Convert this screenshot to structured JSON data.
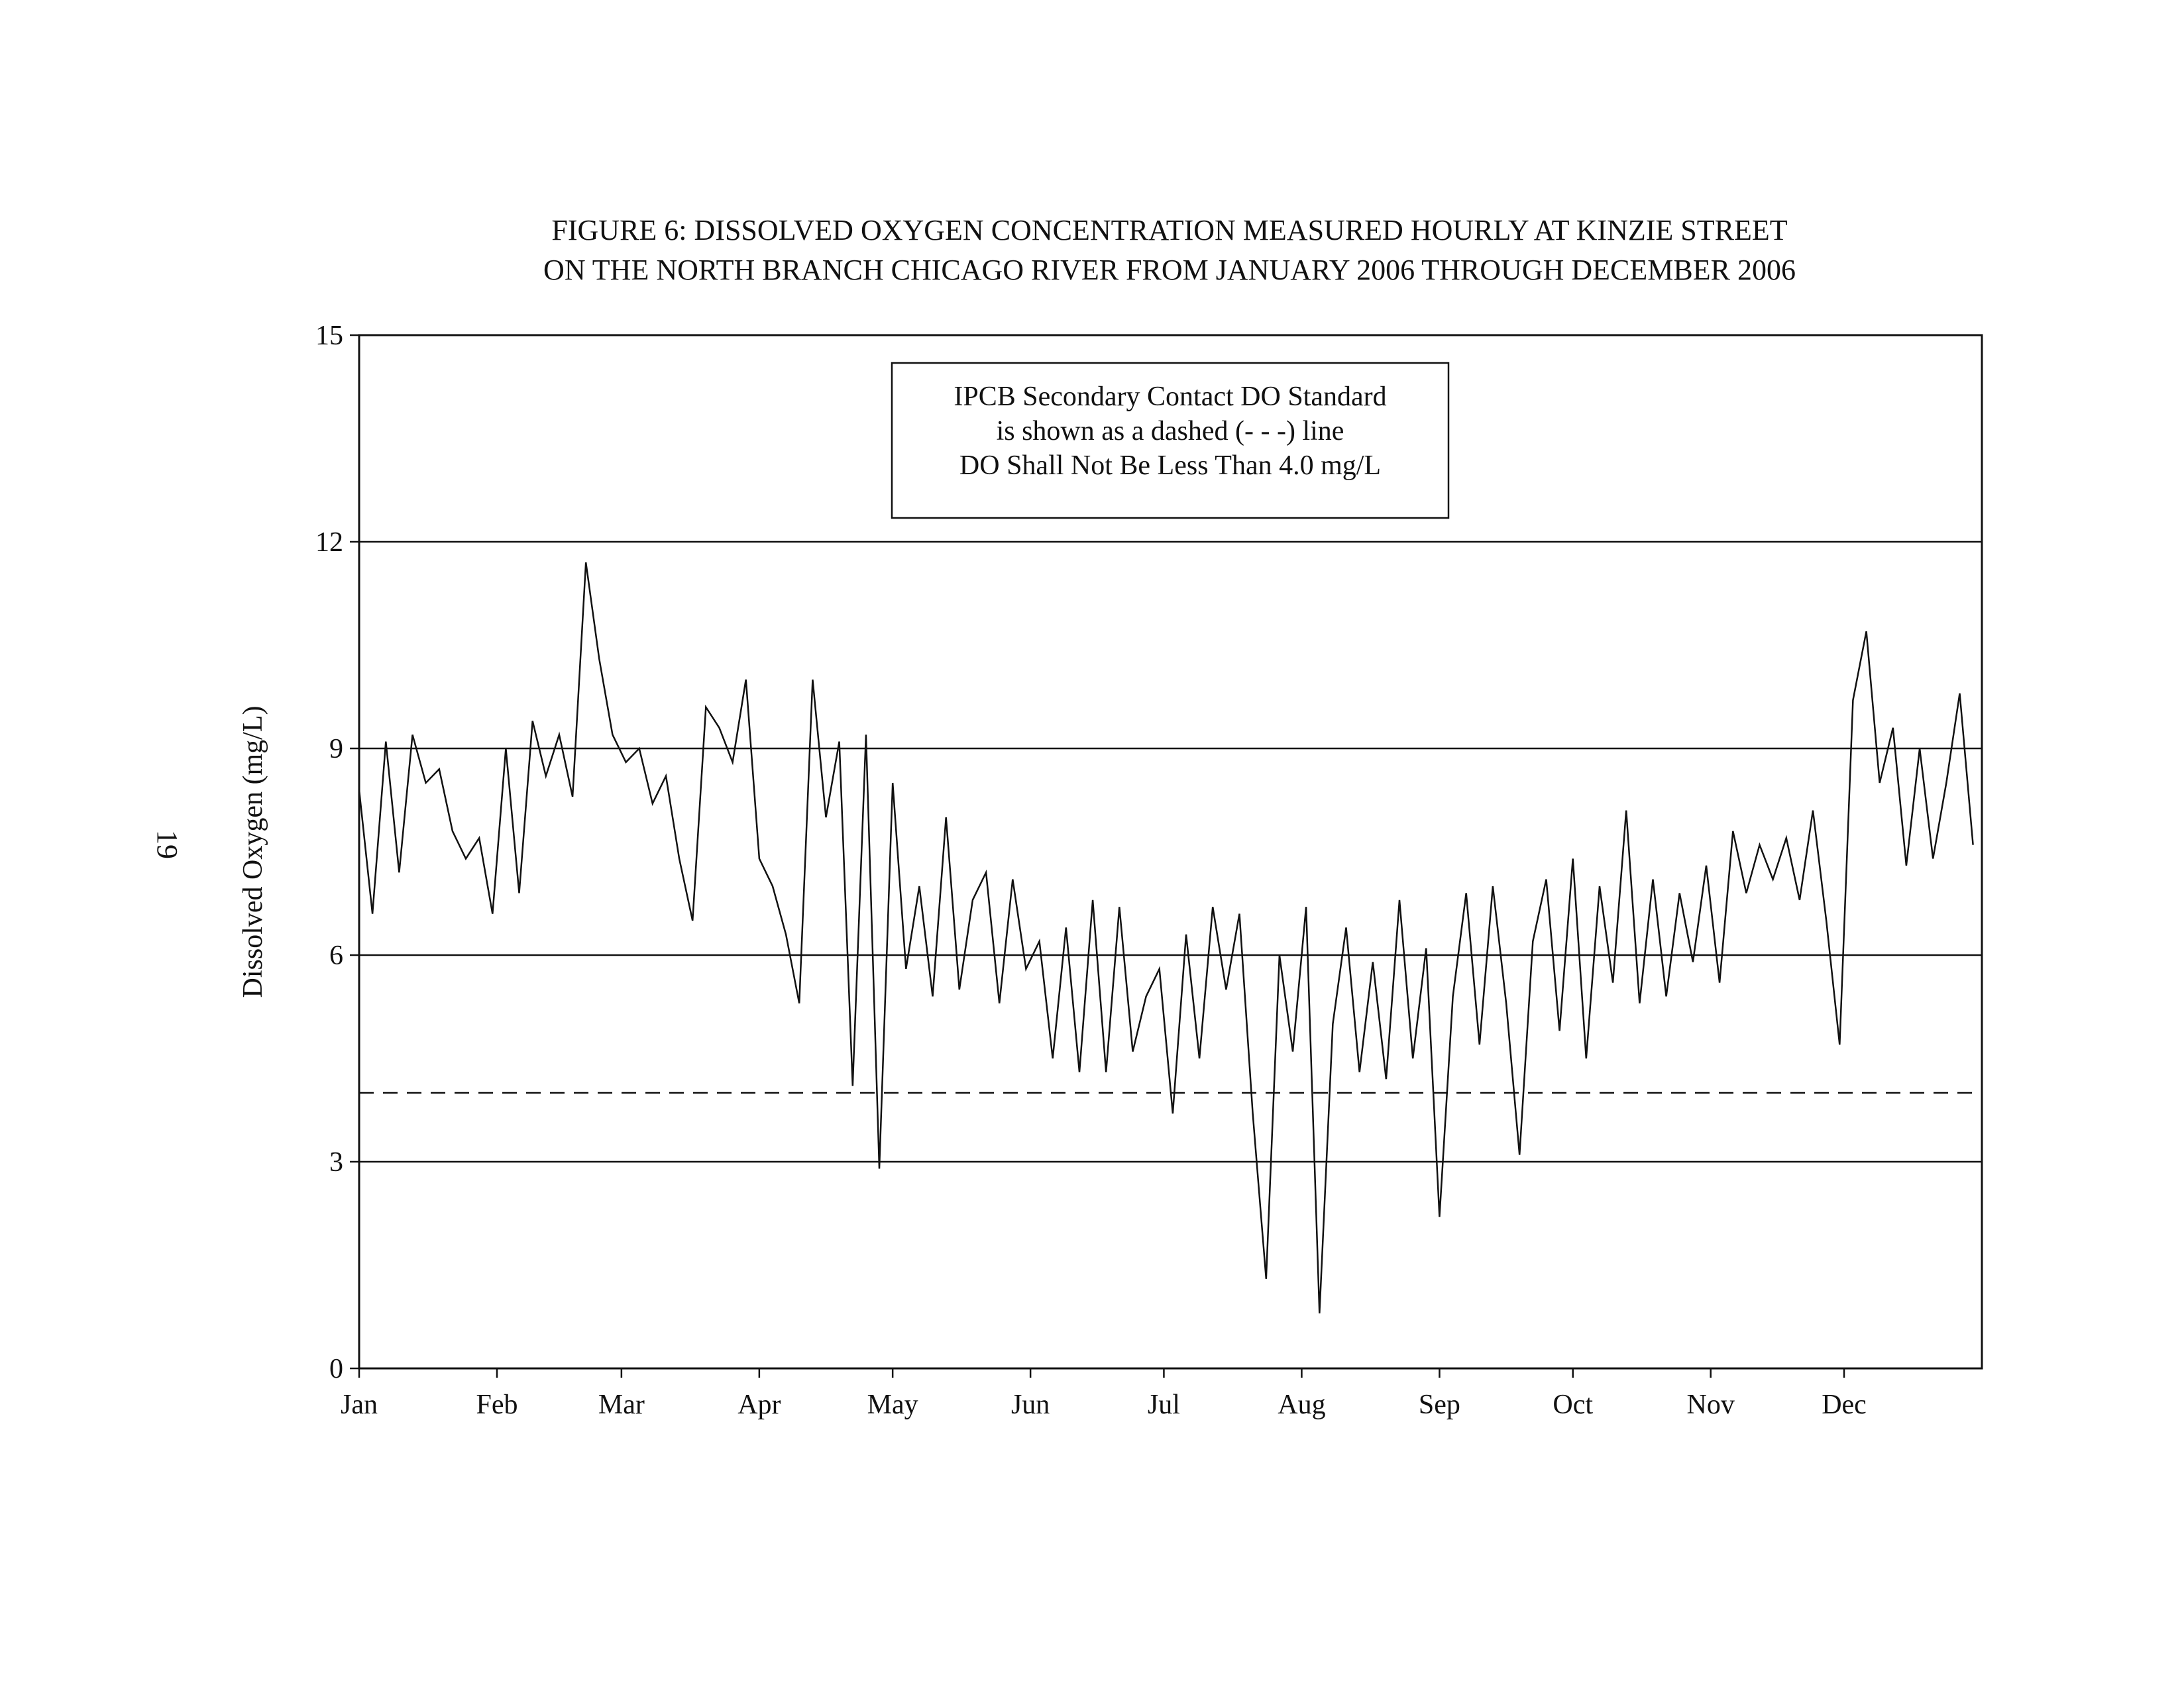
{
  "page_number": "19",
  "chart_data": {
    "type": "line",
    "title": [
      "FIGURE 6: DISSOLVED OXYGEN CONCENTRATION MEASURED HOURLY AT KINZIE STREET",
      "ON THE NORTH BRANCH CHICAGO RIVER FROM JANUARY 2006 THROUGH DECEMBER 2006"
    ],
    "xlabel": "",
    "ylabel": "Dissolved Oxygen (mg/L)",
    "ylim": [
      0,
      15
    ],
    "xlim_days": [
      0,
      365
    ],
    "yticks": [
      0,
      3,
      6,
      9,
      12,
      15
    ],
    "ygrid": [
      3,
      6,
      9,
      12
    ],
    "x_tick_labels": [
      "Jan",
      "Feb",
      "Mar",
      "Apr",
      "May",
      "Jun",
      "Jul",
      "Aug",
      "Sep",
      "Oct",
      "Nov",
      "Dec"
    ],
    "x_tick_days": [
      0,
      31,
      59,
      90,
      120,
      151,
      181,
      212,
      243,
      273,
      304,
      334
    ],
    "standard": {
      "value": 4.0,
      "style": "dashed"
    },
    "legend": {
      "placement": "top-center",
      "lines": [
        "IPCB Secondary Contact DO Standard",
        "is shown as a dashed (- - -) line",
        "DO Shall Not Be Less Than 4.0 mg/L"
      ]
    },
    "series": [
      {
        "name": "Dissolved Oxygen",
        "x_step_days": 3,
        "values": [
          8.4,
          6.6,
          9.1,
          7.2,
          9.2,
          8.5,
          8.7,
          7.8,
          7.4,
          7.7,
          6.6,
          9.0,
          6.9,
          9.4,
          8.6,
          9.2,
          8.3,
          11.7,
          10.3,
          9.2,
          8.8,
          9.0,
          8.2,
          8.6,
          7.4,
          6.5,
          9.6,
          9.3,
          8.8,
          10.0,
          7.4,
          7.0,
          6.3,
          5.3,
          10.0,
          8.0,
          9.1,
          4.1,
          9.2,
          2.9,
          8.5,
          5.8,
          7.0,
          5.4,
          8.0,
          5.5,
          6.8,
          7.2,
          5.3,
          7.1,
          5.8,
          6.2,
          4.5,
          6.4,
          4.3,
          6.8,
          4.3,
          6.7,
          4.6,
          5.4,
          5.8,
          3.7,
          6.3,
          4.5,
          6.7,
          5.5,
          6.6,
          3.7,
          1.3,
          6.0,
          4.6,
          6.7,
          0.8,
          5.0,
          6.4,
          4.3,
          5.9,
          4.2,
          6.8,
          4.5,
          6.1,
          2.2,
          5.4,
          6.9,
          4.7,
          7.0,
          5.3,
          3.1,
          6.2,
          7.1,
          4.9,
          7.4,
          4.5,
          7.0,
          5.6,
          8.1,
          5.3,
          7.1,
          5.4,
          6.9,
          5.9,
          7.3,
          5.6,
          7.8,
          6.9,
          7.6,
          7.1,
          7.7,
          6.8,
          8.1,
          6.5,
          4.7,
          9.7,
          10.7,
          8.5,
          9.3,
          7.3,
          9.0,
          7.4,
          8.5,
          9.8,
          7.6
        ]
      }
    ],
    "colors": {
      "line": "#111111",
      "grid": "#111111"
    }
  }
}
